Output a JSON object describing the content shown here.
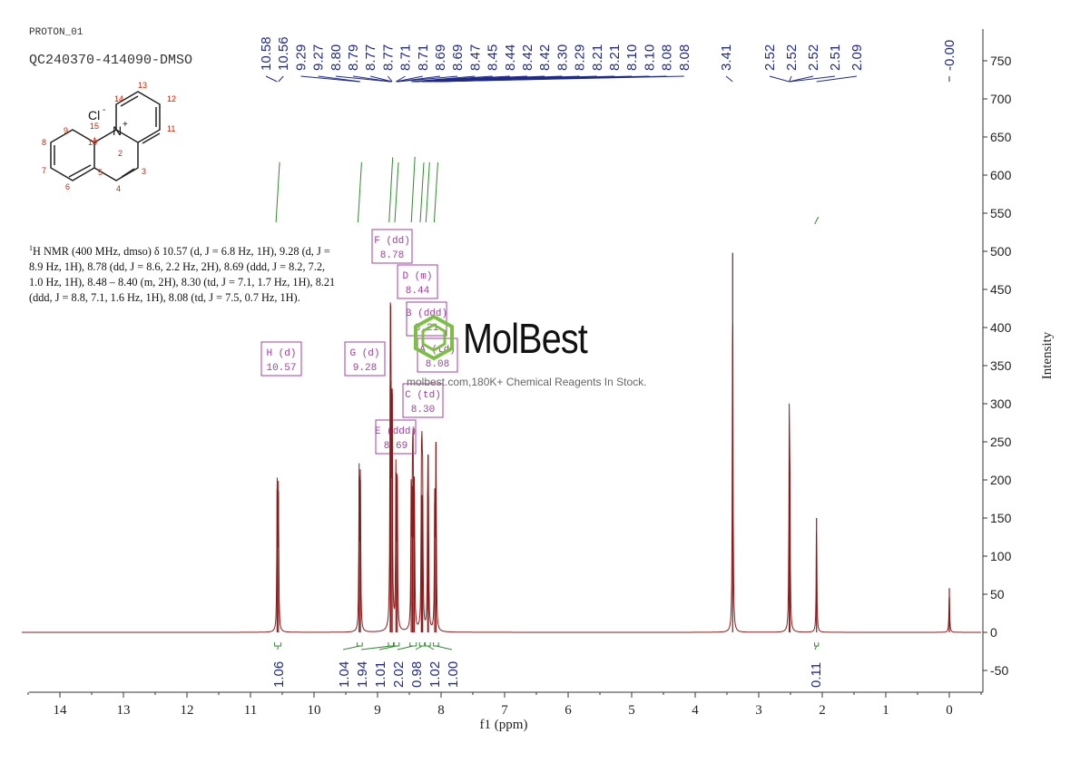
{
  "header": {
    "experiment": "PROTON_01",
    "sample": "QC240370-414090-DMSO"
  },
  "nmr_text": {
    "prefix": "1",
    "body": "H NMR (400 MHz, dmso) δ 10.57 (d, J = 6.8 Hz, 1H), 9.28 (d, J = 8.9 Hz, 1H), 8.78 (dd, J = 8.6, 2.2 Hz, 2H), 8.69 (ddd, J = 8.2, 7.2, 1.0 Hz, 1H), 8.48 – 8.40 (m, 2H), 8.30 (td, J = 7.1, 1.7 Hz, 1H), 8.21 (ddd, J = 8.8, 7.1, 1.6 Hz, 1H), 8.08 (td, J = 7.5, 0.7 Hz, 1H)."
  },
  "watermark": {
    "brand": "MolBest",
    "tagline": "molbest.com,180K+ Chemical Reagents In Stock."
  },
  "structure": {
    "counter_ion": "Cl",
    "charge_minus": "-",
    "nitrogen": "N",
    "charge_plus": "+",
    "atom_numbers": [
      "1",
      "2",
      "3",
      "4",
      "5",
      "6",
      "7",
      "8",
      "9",
      "10",
      "11",
      "12",
      "13",
      "14",
      "15"
    ]
  },
  "colors": {
    "spectrum": "#8b1a1a",
    "peak_labels": "#1f2a8a",
    "integral": "#2e8b2e",
    "multiplet_box": "#a040a0",
    "axis": "#333333",
    "atom_numbers": "#cc2200"
  },
  "chart_data": {
    "type": "line",
    "xlabel": "f1 (ppm)",
    "ylabel": "Intensity",
    "x_reversed": true,
    "xlim": [
      14.6,
      -0.5
    ],
    "ylim": [
      -70,
      790
    ],
    "x_ticks": [
      14,
      13,
      12,
      11,
      10,
      9,
      8,
      7,
      6,
      5,
      4,
      3,
      2,
      1,
      0
    ],
    "y_ticks": [
      -50,
      0,
      50,
      100,
      150,
      200,
      250,
      300,
      350,
      400,
      450,
      500,
      550,
      600,
      650,
      700,
      750
    ],
    "peaks": [
      {
        "ppm": 10.58,
        "height": 188
      },
      {
        "ppm": 10.56,
        "height": 185
      },
      {
        "ppm": 9.29,
        "height": 205
      },
      {
        "ppm": 9.27,
        "height": 200
      },
      {
        "ppm": 8.8,
        "height": 325
      },
      {
        "ppm": 8.79,
        "height": 330
      },
      {
        "ppm": 8.77,
        "height": 320
      },
      {
        "ppm": 8.71,
        "height": 210
      },
      {
        "ppm": 8.69,
        "height": 205
      },
      {
        "ppm": 8.47,
        "height": 195
      },
      {
        "ppm": 8.45,
        "height": 192
      },
      {
        "ppm": 8.44,
        "height": 190
      },
      {
        "ppm": 8.42,
        "height": 185
      },
      {
        "ppm": 8.31,
        "height": 180
      },
      {
        "ppm": 8.3,
        "height": 180
      },
      {
        "ppm": 8.29,
        "height": 172
      },
      {
        "ppm": 8.21,
        "height": 185
      },
      {
        "ppm": 8.2,
        "height": 178
      },
      {
        "ppm": 8.1,
        "height": 170
      },
      {
        "ppm": 8.08,
        "height": 250
      },
      {
        "ppm": 3.41,
        "height": 498
      },
      {
        "ppm": 2.52,
        "height": 250
      },
      {
        "ppm": 2.51,
        "height": 190
      },
      {
        "ppm": 2.09,
        "height": 150
      },
      {
        "ppm": 0.0,
        "height": 58
      }
    ],
    "peak_labels": [
      "10.58",
      "10.56",
      "9.29",
      "9.27",
      "8.80",
      "8.79",
      "8.77",
      "8.77",
      "8.71",
      "8.71",
      "8.69",
      "8.69",
      "8.47",
      "8.45",
      "8.44",
      "8.42",
      "8.42",
      "8.30",
      "8.29",
      "8.21",
      "8.21",
      "8.10",
      "8.10",
      "8.08",
      "8.08",
      "3.41",
      "2.52",
      "2.52",
      "2.52",
      "2.51",
      "2.09",
      "-0.00"
    ],
    "integrals": [
      {
        "label": "1.06",
        "from": 10.62,
        "to": 10.52
      },
      {
        "label": "1.04",
        "from": 9.32,
        "to": 9.24
      },
      {
        "label": "1.94",
        "from": 8.83,
        "to": 8.75
      },
      {
        "label": "1.01",
        "from": 8.74,
        "to": 8.66
      },
      {
        "label": "2.02",
        "from": 8.49,
        "to": 8.39
      },
      {
        "label": "0.98",
        "from": 8.34,
        "to": 8.26
      },
      {
        "label": "1.02",
        "from": 8.25,
        "to": 8.17
      },
      {
        "label": "1.00",
        "from": 8.12,
        "to": 8.04
      },
      {
        "label": "0.11",
        "from": 2.12,
        "to": 2.06
      }
    ],
    "multiplets": [
      {
        "letter": "H (d)",
        "shift": "10.57"
      },
      {
        "letter": "G (d)",
        "shift": "9.28"
      },
      {
        "letter": "F (dd)",
        "shift": "8.78"
      },
      {
        "letter": "D (m)",
        "shift": "8.44"
      },
      {
        "letter": "B (ddd)",
        "shift": "8.21"
      },
      {
        "letter": "A (td)",
        "shift": "8.08"
      },
      {
        "letter": "C (td)",
        "shift": "8.30"
      },
      {
        "letter": "E (ddd)",
        "shift": "8.69"
      }
    ]
  }
}
